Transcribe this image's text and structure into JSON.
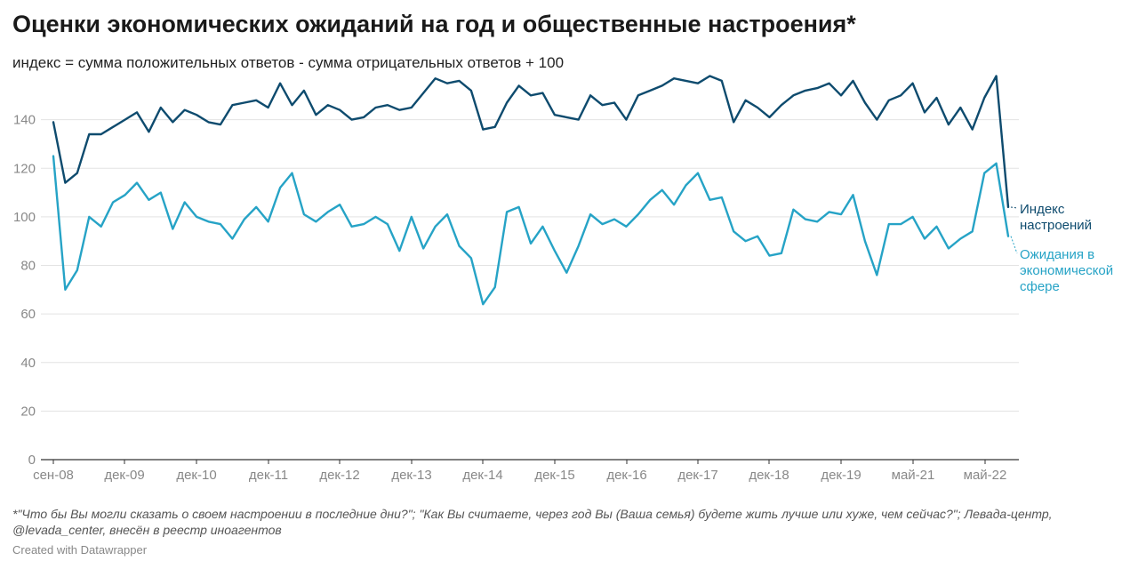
{
  "title": "Оценки экономических ожиданий на год и общественные настроения*",
  "subtitle": "индекс = сумма положительных ответов - сумма отрицательных ответов + 100",
  "footnote": "*\"Что бы Вы могли сказать о своем настроении в последние дни?\"; \"Как Вы считаете, через год Вы (Ваша семья) будете жить лучше или хуже, чем сейчас?\"; Левада-центр, @levada_center, внесён в реестр иноагентов",
  "credit": "Created with Datawrapper",
  "colors": {
    "mood": "#0e4b6e",
    "expectations": "#26a3c6"
  },
  "chart_data": {
    "type": "line",
    "title": "Оценки экономических ожиданий на год и общественные настроения*",
    "subtitle": "индекс = сумма положительных ответов - сумма отрицательных ответов + 100",
    "ylim": [
      0,
      160
    ],
    "yticks": [
      0,
      20,
      40,
      60,
      80,
      100,
      120,
      140
    ],
    "grid": true,
    "legend": "direct labels at right end of lines",
    "x_start": "сен-08",
    "x_end": "июн-22",
    "x_tick_labels": [
      "сен-08",
      "дек-09",
      "дек-10",
      "дек-11",
      "дек-12",
      "дек-13",
      "дек-14",
      "дек-15",
      "дек-16",
      "дек-17",
      "дек-18",
      "дек-19",
      "май-21",
      "май-22"
    ],
    "series": [
      {
        "name": "Индекс\nнастроений",
        "values": [
          139,
          114,
          118,
          134,
          134,
          137,
          140,
          143,
          135,
          145,
          139,
          144,
          142,
          139,
          138,
          146,
          147,
          148,
          145,
          155,
          146,
          152,
          142,
          146,
          144,
          140,
          141,
          145,
          146,
          144,
          145,
          151,
          157,
          155,
          156,
          152,
          136,
          137,
          147,
          154,
          150,
          151,
          142,
          141,
          140,
          150,
          146,
          147,
          140,
          150,
          152,
          154,
          157,
          156,
          155,
          158,
          156,
          139,
          148,
          145,
          141,
          146,
          150,
          152,
          153,
          155,
          150,
          156,
          147,
          140,
          148,
          150,
          155,
          143,
          149,
          138,
          145,
          136,
          149,
          158,
          104
        ]
      },
      {
        "name": "Ожидания в\nэкономической\nсфере",
        "values": [
          125,
          70,
          78,
          100,
          96,
          106,
          109,
          114,
          107,
          110,
          95,
          106,
          100,
          98,
          97,
          91,
          99,
          104,
          98,
          112,
          118,
          101,
          98,
          102,
          105,
          96,
          97,
          100,
          97,
          86,
          100,
          87,
          96,
          101,
          88,
          83,
          64,
          71,
          102,
          104,
          89,
          96,
          86,
          77,
          88,
          101,
          97,
          99,
          96,
          101,
          107,
          111,
          105,
          113,
          118,
          107,
          108,
          94,
          90,
          92,
          84,
          85,
          103,
          99,
          98,
          102,
          101,
          109,
          90,
          76,
          97,
          97,
          100,
          91,
          96,
          87,
          91,
          94,
          118,
          122,
          92
        ]
      }
    ]
  }
}
